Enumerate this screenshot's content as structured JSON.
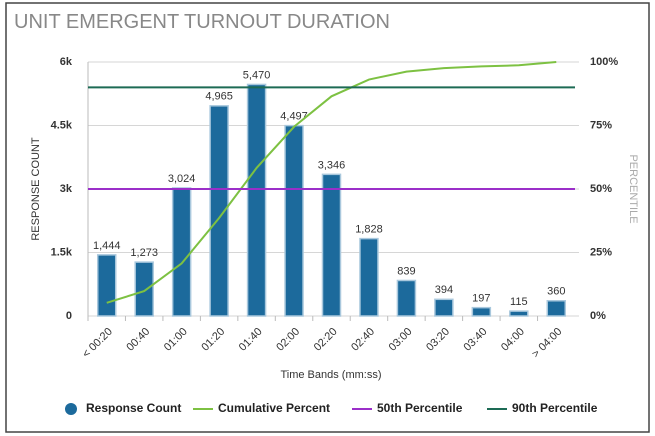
{
  "chart_data": {
    "type": "bar",
    "title": "UNIT EMERGENT TURNOUT DURATION",
    "x_label": "Time Bands (mm:ss)",
    "y_label": "RESPONSE COUNT",
    "y2_label": "PERCENTILE",
    "categories": [
      "< 00:20",
      "00:40",
      "01:00",
      "01:20",
      "01:40",
      "02:00",
      "02:20",
      "02:40",
      "03:00",
      "03:20",
      "03:40",
      "04:00",
      "> 04:00"
    ],
    "series": [
      {
        "name": "Response Count",
        "type": "bar",
        "color": "#1c6a9c",
        "values": [
          1444,
          1273,
          3024,
          4965,
          5470,
          4497,
          3346,
          1828,
          839,
          394,
          197,
          115,
          360
        ],
        "value_labels": [
          "1,444",
          "1,273",
          "3,024",
          "4,965",
          "5,470",
          "4,497",
          "3,346",
          "1,828",
          "839",
          "394",
          "197",
          "115",
          "360"
        ]
      },
      {
        "name": "Cumulative Percent",
        "type": "line",
        "axis": "y2",
        "color": "#7dc142",
        "values": [
          5.2,
          9.8,
          20.7,
          38.6,
          58.3,
          74.5,
          86.5,
          93.1,
          96.2,
          97.6,
          98.3,
          98.7,
          100
        ]
      },
      {
        "name": "50th Percentile",
        "type": "line",
        "axis": "y2",
        "color": "#9b2fc9",
        "values": [
          50,
          50,
          50,
          50,
          50,
          50,
          50,
          50,
          50,
          50,
          50,
          50,
          50
        ]
      },
      {
        "name": "90th Percentile",
        "type": "line",
        "axis": "y2",
        "color": "#1d6b55",
        "values": [
          90,
          90,
          90,
          90,
          90,
          90,
          90,
          90,
          90,
          90,
          90,
          90,
          90
        ]
      }
    ],
    "ylim": [
      0,
      6000
    ],
    "yticks": [
      0,
      {
        "value": 1500,
        "label": "1.5k"
      },
      {
        "value": 3000,
        "label": "3k"
      },
      {
        "value": 4500,
        "label": "4.5k"
      },
      {
        "value": 6000,
        "label": "6k"
      }
    ],
    "y2lim": [
      0,
      100
    ],
    "y2ticks": [
      {
        "value": 0,
        "label": "0%"
      },
      {
        "value": 25,
        "label": "25%"
      },
      {
        "value": 50,
        "label": "50%"
      },
      {
        "value": 75,
        "label": "75%"
      },
      {
        "value": 100,
        "label": "100%"
      }
    ],
    "grid": true
  }
}
